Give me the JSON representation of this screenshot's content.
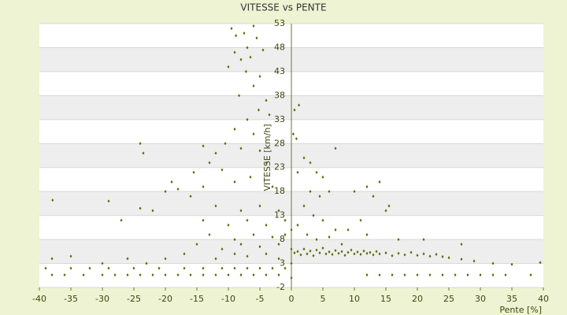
{
  "chart_data": {
    "type": "scatter",
    "title": "VITESSE vs PENTE",
    "x_label": "Pente [%]",
    "y_label": "VITESSE [km/h]",
    "xlim": [
      -40,
      40
    ],
    "xticks": [
      -40,
      -35,
      -30,
      -25,
      -20,
      -15,
      -10,
      -5,
      0,
      5,
      10,
      15,
      20,
      25,
      30,
      35,
      40
    ],
    "ylim": [
      -2,
      53
    ],
    "yticks": [
      -2,
      3,
      8,
      13,
      18,
      23,
      28,
      33,
      38,
      43,
      48,
      53
    ],
    "grid": true,
    "color": "#5a6b00",
    "x": [
      0.5,
      1,
      1.5,
      2,
      2.5,
      3,
      3.5,
      4,
      4.5,
      5,
      5.5,
      6,
      6.5,
      7,
      7.5,
      8,
      8.5,
      9,
      9.5,
      10,
      10.5,
      11,
      11.5,
      12,
      12.5,
      13,
      13.5,
      14,
      15,
      16,
      17,
      18,
      19,
      20,
      21,
      22,
      23,
      24,
      25,
      27,
      29,
      32,
      35,
      39.5,
      -38,
      -36,
      -33,
      -30,
      -28,
      -26,
      -24,
      -22,
      -20,
      -18,
      -16,
      -14,
      -12,
      -10,
      -8,
      -6,
      -4,
      -2,
      12,
      14,
      16,
      18,
      20,
      22,
      24,
      26,
      28,
      30,
      32,
      34,
      38,
      -39,
      -35,
      -32,
      -29,
      -25,
      -21,
      -17,
      -14,
      -11,
      -9,
      -7,
      -5,
      -3,
      -1,
      -9.5,
      -8.8,
      -7.5,
      -6,
      -5.5,
      -7,
      -9,
      -8,
      -6.5,
      -4.5,
      -10,
      -7.2,
      -5,
      -6,
      -8.3,
      -4,
      -5.2,
      -3.5,
      -7,
      -9,
      -6,
      -10.5,
      -8,
      -12,
      -5,
      -14,
      -13,
      -15.5,
      -11,
      -4,
      -6.5,
      -9,
      -14,
      -18,
      -16,
      -3,
      -12,
      -8,
      -5,
      -2,
      -14,
      -10,
      -7,
      -4,
      -1,
      -13,
      -9,
      -6,
      -3,
      -1,
      -15,
      -11,
      -8,
      -5,
      -2,
      -12,
      -9,
      -7,
      -4,
      -2,
      -17,
      -20,
      -23,
      -26,
      -30,
      -35,
      -38,
      -37.9,
      -29,
      -27,
      -23.5,
      -24,
      -24,
      -22,
      -19,
      -20,
      0.5,
      1.2,
      0.3,
      0.8,
      2,
      1,
      3,
      4,
      5,
      7,
      3,
      4.5,
      6,
      2,
      3.5,
      5,
      7,
      1,
      2.5,
      4,
      6,
      8,
      10,
      12,
      13,
      14,
      15,
      15.5,
      11,
      9,
      12,
      17,
      21,
      27,
      0,
      0,
      0,
      0
    ],
    "y": [
      5.2,
      5.5,
      4.8,
      6,
      5,
      5.6,
      4.6,
      5.8,
      5.2,
      6.2,
      5,
      5.4,
      4.9,
      5.7,
      5.1,
      5.5,
      4.7,
      5.3,
      5.8,
      5,
      5.4,
      4.9,
      5.6,
      5.1,
      5.3,
      4.8,
      5.5,
      5,
      5.2,
      4.6,
      5.1,
      4.8,
      5.3,
      4.7,
      5,
      4.5,
      4.9,
      4.4,
      4.2,
      3.9,
      3.5,
      3,
      2.8,
      3.2,
      0.6,
      0.6,
      0.6,
      0.6,
      0.6,
      0.6,
      0.6,
      0.6,
      0.6,
      0.6,
      0.6,
      0.6,
      0.6,
      0.6,
      0.6,
      0.6,
      0.6,
      0.6,
      0.6,
      0.6,
      0.6,
      0.6,
      0.6,
      0.6,
      0.6,
      0.6,
      0.6,
      0.6,
      0.6,
      0.6,
      0.6,
      2,
      2,
      2,
      2,
      2,
      2,
      2,
      2,
      2,
      2,
      2,
      2,
      2,
      2,
      52,
      50.5,
      51,
      52.5,
      50,
      48,
      47,
      45.5,
      46,
      47.5,
      44,
      43,
      42,
      40,
      38,
      37,
      35,
      34,
      33,
      31,
      30,
      28,
      27,
      26,
      26.5,
      27.5,
      24,
      22,
      22.5,
      24,
      21,
      20,
      19,
      18.5,
      17,
      19,
      15,
      14,
      15,
      14,
      12,
      11,
      12,
      11,
      12,
      9,
      8,
      9,
      8.5,
      9,
      7,
      6,
      7,
      6.5,
      7,
      4,
      5,
      4.5,
      5,
      4,
      5,
      4,
      3,
      4,
      3,
      4.5,
      4,
      16.2,
      16,
      12,
      26,
      28,
      14.5,
      14,
      20,
      18,
      35,
      36,
      30,
      29,
      25,
      22,
      24,
      22,
      21,
      27,
      18,
      17,
      18,
      15,
      13,
      12,
      10,
      11,
      9,
      8,
      8.5,
      7,
      18,
      19,
      17,
      20,
      14,
      15,
      12,
      10,
      9,
      8,
      8,
      7,
      0,
      3,
      6,
      10
    ]
  }
}
